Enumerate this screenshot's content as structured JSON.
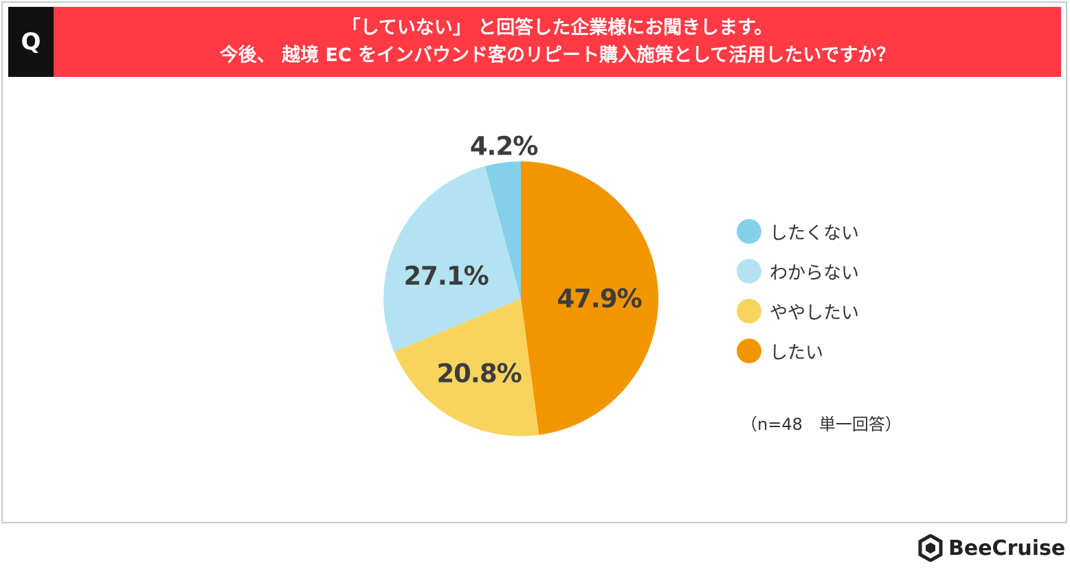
{
  "header": {
    "q_label": "Q",
    "line1": "「していない」 と回答した企業様にお聞きします。",
    "line2": "今後、 越境 EC をインバウンド客のリピート購入施策として活用したいですか？"
  },
  "chart_data": {
    "type": "pie",
    "title": "「していない」 と回答した企業様にお聞きします。今後、 越境 EC をインバウンド客のリピート購入施策として活用したいですか？",
    "slices": [
      {
        "name": "したい",
        "value": 47.9,
        "label": "47.9%",
        "color": "#f29600"
      },
      {
        "name": "ややしたい",
        "value": 20.8,
        "label": "20.8%",
        "color": "#f8d45e"
      },
      {
        "name": "わからない",
        "value": 27.1,
        "label": "27.1%",
        "color": "#b3e3f3"
      },
      {
        "name": "したくない",
        "value": 4.2,
        "label": "4.2%",
        "color": "#84d0ea"
      }
    ],
    "legend_order": [
      "したくない",
      "わからない",
      "ややしたい",
      "したい"
    ],
    "legend_position": "right"
  },
  "legend": {
    "items": [
      {
        "label": "したくない",
        "color": "#84d0ea"
      },
      {
        "label": "わからない",
        "color": "#b3e3f3"
      },
      {
        "label": "ややしたい",
        "color": "#f8d45e"
      },
      {
        "label": "したい",
        "color": "#f29600"
      }
    ]
  },
  "note": "（n=48　単一回答）",
  "brand": {
    "name": "BeeCruise",
    "icon": "hexagon-logo-icon"
  }
}
